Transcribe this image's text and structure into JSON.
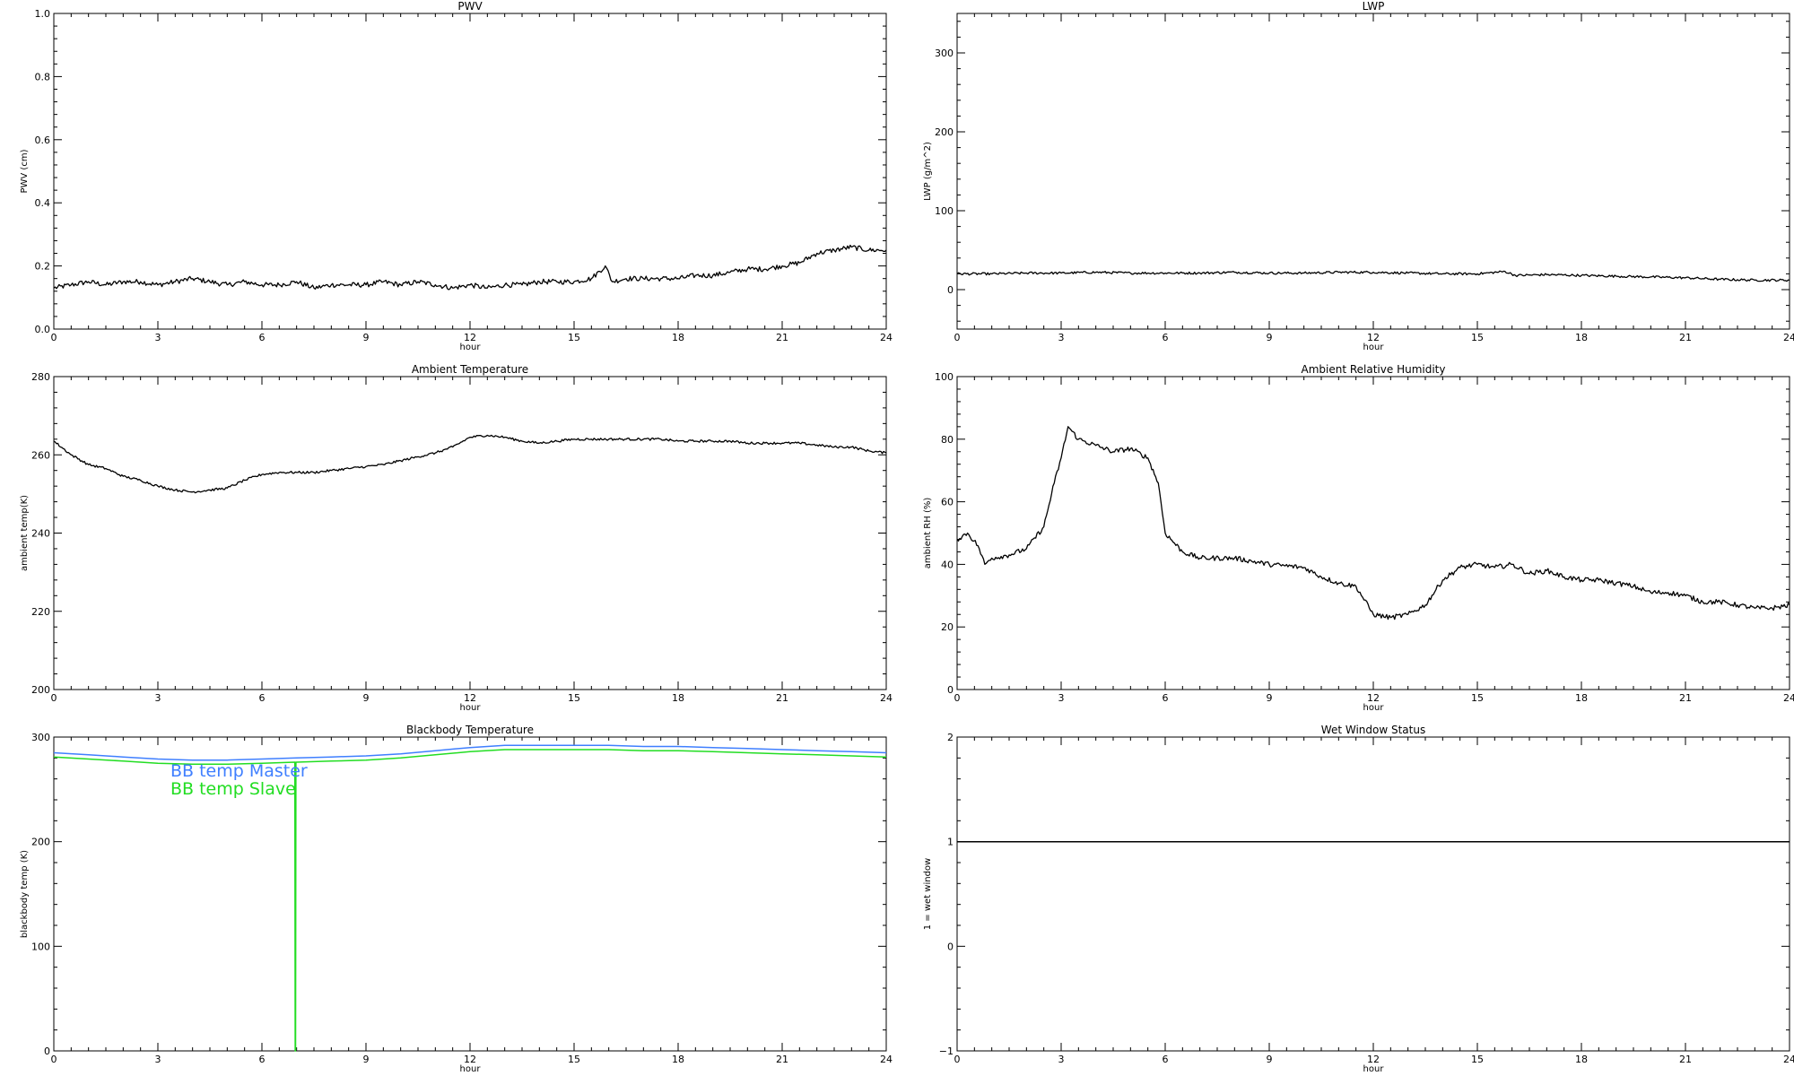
{
  "colors": {
    "background": "#ffffff",
    "axes": "#000000",
    "series_default": "#000000",
    "bb_master": "#3f7fff",
    "bb_slave": "#22dd22"
  },
  "chart_data": [
    {
      "id": "pwv",
      "type": "line",
      "title": "PWV",
      "xlabel": "hour",
      "ylabel": "PWV (cm)",
      "xlim": [
        0,
        24
      ],
      "ylim": [
        0,
        1.0
      ],
      "xticks": [
        "0",
        "3",
        "6",
        "9",
        "12",
        "15",
        "18",
        "21",
        "24"
      ],
      "yticks": [
        "0.0",
        "0.2",
        "0.4",
        "0.6",
        "0.8",
        "1.0"
      ],
      "grid": false,
      "noise": 0.008,
      "series": [
        {
          "color": "#000000",
          "x": [
            0,
            0.5,
            1,
            1.5,
            2,
            2.5,
            3,
            3.5,
            4,
            4.5,
            5,
            5.5,
            6,
            6.5,
            7,
            7.5,
            8,
            8.5,
            9,
            9.5,
            10,
            10.5,
            11,
            11.5,
            12,
            12.5,
            13,
            13.5,
            14,
            14.5,
            15,
            15.5,
            15.9,
            16.1,
            16.5,
            17,
            17.5,
            18,
            18.5,
            19,
            19.5,
            20,
            20.5,
            21,
            21.5,
            22,
            22.5,
            23,
            23.5,
            24
          ],
          "y": [
            0.13,
            0.14,
            0.15,
            0.14,
            0.15,
            0.15,
            0.14,
            0.15,
            0.16,
            0.15,
            0.14,
            0.15,
            0.14,
            0.14,
            0.15,
            0.13,
            0.14,
            0.14,
            0.14,
            0.15,
            0.14,
            0.15,
            0.14,
            0.13,
            0.14,
            0.13,
            0.14,
            0.14,
            0.15,
            0.15,
            0.15,
            0.16,
            0.2,
            0.15,
            0.16,
            0.16,
            0.16,
            0.16,
            0.17,
            0.17,
            0.18,
            0.19,
            0.19,
            0.2,
            0.21,
            0.24,
            0.25,
            0.26,
            0.25,
            0.25
          ]
        }
      ]
    },
    {
      "id": "lwp",
      "type": "line",
      "title": "LWP",
      "xlabel": "hour",
      "ylabel": "LWP (g/m^2)",
      "xlim": [
        0,
        24
      ],
      "ylim": [
        -50,
        350
      ],
      "xticks": [
        "0",
        "3",
        "6",
        "9",
        "12",
        "15",
        "18",
        "21",
        "24"
      ],
      "yticks": [
        "0",
        "100",
        "200",
        "300"
      ],
      "ytick_values": [
        0,
        100,
        200,
        300
      ],
      "grid": false,
      "noise": 1.5,
      "series": [
        {
          "color": "#000000",
          "x": [
            0,
            1,
            2,
            3,
            4,
            5,
            6,
            7,
            8,
            9,
            10,
            11,
            12,
            13,
            14,
            15,
            15.8,
            16.1,
            17,
            18,
            19,
            20,
            21,
            22,
            23,
            24
          ],
          "y": [
            20,
            20,
            21,
            21,
            22,
            21,
            21,
            21,
            22,
            21,
            21,
            22,
            22,
            21,
            20,
            20,
            23,
            18,
            19,
            18,
            17,
            16,
            15,
            13,
            12,
            12
          ]
        }
      ]
    },
    {
      "id": "ambient-temp",
      "type": "line",
      "title": "Ambient Temperature",
      "xlabel": "hour",
      "ylabel": "ambient temp(K)",
      "xlim": [
        0,
        24
      ],
      "ylim": [
        200,
        280
      ],
      "xticks": [
        "0",
        "3",
        "6",
        "9",
        "12",
        "15",
        "18",
        "21",
        "24"
      ],
      "yticks": [
        "200",
        "220",
        "240",
        "260",
        "280"
      ],
      "ytick_values": [
        200,
        220,
        240,
        260,
        280
      ],
      "grid": false,
      "noise": 0.3,
      "series": [
        {
          "color": "#000000",
          "x": [
            0,
            0.5,
            1,
            1.5,
            2,
            2.5,
            3,
            3.5,
            4,
            4.5,
            5,
            5.5,
            6,
            6.5,
            7,
            7.5,
            8,
            8.5,
            9,
            9.5,
            10,
            10.5,
            11,
            11.5,
            12,
            12.5,
            13,
            13.5,
            14,
            14.5,
            15,
            15.5,
            16,
            16.5,
            17,
            17.5,
            18,
            18.5,
            19,
            19.5,
            20,
            20.5,
            21,
            21.5,
            22,
            22.5,
            23,
            23.5,
            24
          ],
          "y": [
            263.5,
            260,
            257.5,
            256.5,
            254.5,
            253.5,
            252,
            251,
            250.5,
            251,
            251.5,
            253.5,
            255,
            255.5,
            255.5,
            255.5,
            256,
            256.5,
            257,
            257.5,
            258.5,
            259.5,
            260.5,
            262,
            264.5,
            265,
            264.5,
            263.5,
            263,
            263.5,
            264,
            264,
            264,
            264,
            264,
            264,
            263.5,
            263.5,
            263.5,
            263.5,
            263,
            263,
            263,
            263,
            262.5,
            262,
            262,
            261,
            260.5
          ]
        }
      ]
    },
    {
      "id": "ambient-rh",
      "type": "line",
      "title": "Ambient Relative Humidity",
      "xlabel": "hour",
      "ylabel": "ambient RH (%)",
      "xlim": [
        0,
        24
      ],
      "ylim": [
        0,
        100
      ],
      "xticks": [
        "0",
        "3",
        "6",
        "9",
        "12",
        "15",
        "18",
        "21",
        "24"
      ],
      "yticks": [
        "0",
        "20",
        "40",
        "60",
        "80",
        "100"
      ],
      "ytick_values": [
        0,
        20,
        40,
        60,
        80,
        100
      ],
      "grid": false,
      "noise": 0.8,
      "series": [
        {
          "color": "#000000",
          "x": [
            0,
            0.3,
            0.6,
            0.8,
            1,
            1.5,
            2,
            2.5,
            2.8,
            3,
            3.2,
            3.5,
            4,
            4.5,
            5,
            5.5,
            5.8,
            6,
            6.5,
            7,
            8,
            9,
            10,
            10.5,
            11,
            11.5,
            12,
            12.5,
            13,
            13.5,
            14,
            14.5,
            15,
            15.5,
            16,
            16.5,
            17,
            17.5,
            18,
            18.5,
            19,
            19.5,
            20,
            20.5,
            21,
            21.5,
            22,
            22.5,
            23,
            23.5,
            24
          ],
          "y": [
            48,
            50,
            46,
            40,
            42,
            43,
            45,
            52,
            66,
            74,
            84,
            80,
            78,
            76,
            77,
            74,
            66,
            50,
            44,
            42,
            42,
            40,
            39,
            36,
            34,
            33,
            24,
            23,
            24,
            27,
            35,
            39,
            40,
            39,
            40,
            37,
            38,
            36,
            35,
            35,
            34,
            33,
            31,
            31,
            30,
            28,
            28,
            27,
            26,
            26,
            27
          ]
        }
      ]
    },
    {
      "id": "blackbody-temp",
      "type": "line",
      "title": "Blackbody Temperature",
      "xlabel": "hour",
      "ylabel": "blackbody temp (K)",
      "xlim": [
        0,
        24
      ],
      "ylim": [
        0,
        300
      ],
      "xticks": [
        "0",
        "3",
        "6",
        "9",
        "12",
        "15",
        "18",
        "21",
        "24"
      ],
      "yticks": [
        "0",
        "100",
        "200",
        "300"
      ],
      "ytick_values": [
        0,
        100,
        200,
        300
      ],
      "grid": false,
      "noise": 0,
      "legend_position": "top-left",
      "series": [
        {
          "name": "BB temp Master",
          "color": "#3f7fff",
          "x": [
            0,
            1,
            2,
            3,
            4,
            5,
            6,
            7,
            8,
            9,
            10,
            11,
            12,
            13,
            14,
            15,
            16,
            17,
            18,
            19,
            20,
            21,
            22,
            23,
            24
          ],
          "y": [
            285,
            283,
            281,
            279,
            278,
            278,
            279,
            280,
            281,
            282,
            284,
            287,
            290,
            292,
            292,
            292,
            292,
            291,
            291,
            290,
            289,
            288,
            287,
            286,
            285
          ]
        },
        {
          "name": "BB temp Slave",
          "color": "#22dd22",
          "x": [
            0,
            1,
            2,
            3,
            4,
            5,
            6,
            6.95,
            6.96,
            6.97,
            6.98,
            7,
            8,
            9,
            10,
            11,
            12,
            13,
            14,
            15,
            16,
            17,
            18,
            19,
            20,
            21,
            22,
            23,
            24
          ],
          "y": [
            281,
            279,
            277,
            275,
            274,
            274,
            275,
            276,
            0,
            0,
            276,
            276,
            277,
            278,
            280,
            283,
            286,
            288,
            288,
            288,
            288,
            287,
            287,
            286,
            285,
            284,
            283,
            282,
            281
          ]
        }
      ]
    },
    {
      "id": "wet-window",
      "type": "line",
      "title": "Wet Window Status",
      "xlabel": "hour",
      "ylabel": "1 = wet window",
      "xlim": [
        0,
        24
      ],
      "ylim": [
        -1,
        2
      ],
      "xticks": [
        "0",
        "3",
        "6",
        "9",
        "12",
        "15",
        "18",
        "21",
        "24"
      ],
      "yticks": [
        "−1",
        "0",
        "1",
        "2"
      ],
      "ytick_values": [
        -1,
        0,
        1,
        2
      ],
      "grid": false,
      "noise": 0,
      "series": [
        {
          "color": "#000000",
          "x": [
            0,
            24
          ],
          "y": [
            1,
            1
          ]
        }
      ]
    }
  ]
}
